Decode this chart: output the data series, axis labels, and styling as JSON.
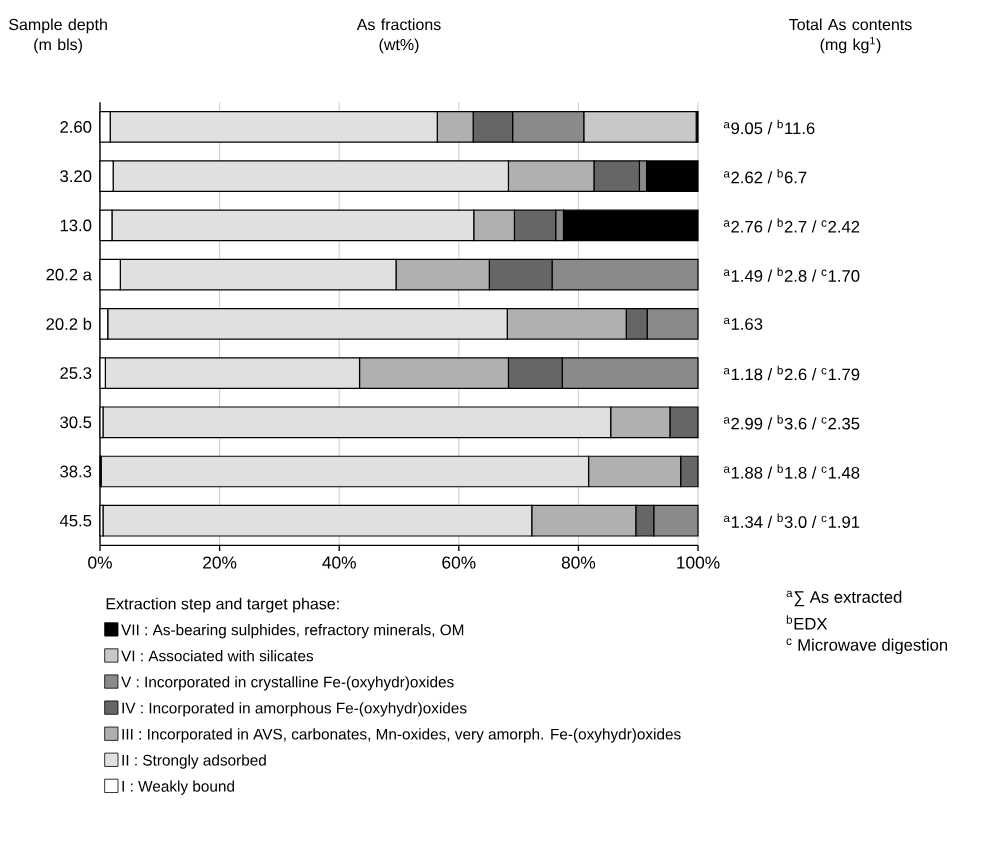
{
  "chart_data": {
    "type": "bar",
    "orientation": "horizontal",
    "stacked": true,
    "title": "As fractions (wt%)",
    "ylabel": "Sample depth (m bls)",
    "categories": [
      "2.60",
      "3.20",
      "13.0",
      "20.2 a",
      "20.2 b",
      "25.3",
      "30.5",
      "38.3",
      "45.5"
    ],
    "series": [
      {
        "name": "I : Weakly bound",
        "color": "#ffffff",
        "values": [
          1.7,
          2.2,
          2.0,
          3.4,
          1.3,
          0.9,
          0.5,
          0.2,
          0.5
        ]
      },
      {
        "name": "II : Strongly adsorbed",
        "color": "#e0e0e0",
        "values": [
          54.7,
          66.1,
          60.5,
          46.1,
          66.8,
          42.5,
          84.9,
          81.5,
          71.7
        ]
      },
      {
        "name": "III : Incorporated in AVS, carbonates, Mn-oxides, very amorph. Fe-(oxyhydr)oxides",
        "color": "#b0b0b0",
        "values": [
          6.0,
          14.3,
          6.8,
          15.6,
          19.9,
          24.9,
          9.9,
          15.4,
          17.4
        ]
      },
      {
        "name": "IV : Incorporated in amorphous Fe-(oxyhydr)oxides",
        "color": "#666666",
        "values": [
          6.6,
          7.6,
          6.9,
          10.5,
          3.5,
          9.0,
          4.7,
          2.9,
          3.0
        ]
      },
      {
        "name": "V : Incorporated in crystalline Fe-(oxyhydr)oxides",
        "color": "#8a8a8a",
        "values": [
          11.9,
          1.2,
          1.3,
          24.4,
          8.5,
          22.7,
          0,
          0,
          7.4
        ]
      },
      {
        "name": "VI : Associated with silicates",
        "color": "#c8c8c8",
        "values": [
          18.8,
          0,
          0,
          0,
          0,
          0,
          0,
          0,
          0
        ]
      },
      {
        "name": "VII : As-bearing sulphides, refractory minerals, OM",
        "color": "#000000",
        "values": [
          0.3,
          8.6,
          22.5,
          0,
          0,
          0,
          0,
          0,
          0
        ]
      }
    ],
    "xlim": [
      0,
      100
    ],
    "xticks": [
      {
        "value": 0,
        "label": "0%"
      },
      {
        "value": 20,
        "label": "20%"
      },
      {
        "value": 40,
        "label": "40%"
      },
      {
        "value": 60,
        "label": "60%"
      },
      {
        "value": 80,
        "label": "80%"
      },
      {
        "value": 100,
        "label": "100%"
      }
    ],
    "grid": "x",
    "legend": "bottom",
    "legend_title": "Extraction step and target phase:",
    "annotations": [
      "$^{a}$9.05 / $^{b}$11.6",
      "$^{a}$2.62 / $^{b}$6.7",
      "$^{a}$2.76 / $^{b}$2.7 / $^{c}$2.42",
      "$^{a}$1.49 / $^{b}$2.8 / $^{c}$1.70",
      "$^{a}$1.63",
      "$^{a}$1.18 / $^{b}$2.6 / $^{c}$1.79",
      "$^{a}$2.99 / $^{b}$3.6 / $^{c}$2.35",
      "$^{a}$1.88 / $^{b}$1.8 / $^{c}$1.48",
      "$^{a}$1.34 / $^{b}$3.0 / $^{c}$1.91",
      "Total As contents (mg kg$^{1}$)",
      "$^{a}$∑ As extracted",
      "$^{b}$EDX",
      "$^{c}$ Microwave digestion"
    ]
  }
}
